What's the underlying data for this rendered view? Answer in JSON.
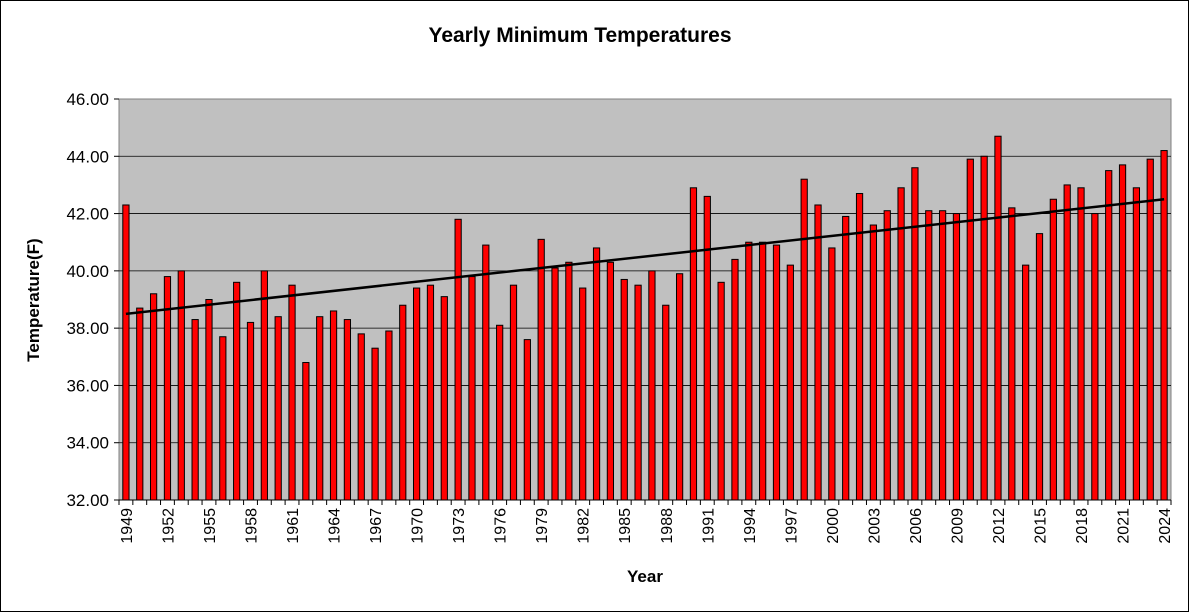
{
  "chart_data": {
    "type": "bar",
    "title": "Yearly Minimum Temperatures",
    "xlabel": "Year",
    "ylabel": "Temperature(F)",
    "ylim": [
      32,
      46
    ],
    "yticks": [
      "32.00",
      "34.00",
      "36.00",
      "38.00",
      "40.00",
      "42.00",
      "44.00",
      "46.00"
    ],
    "grid": true,
    "legend": "none",
    "colors": {
      "plot_background": "#c0c0c0",
      "bar_fill": "#ff0000",
      "bar_stroke": "#000000",
      "trendline": "#000000"
    },
    "x": [
      1949,
      1950,
      1951,
      1952,
      1953,
      1954,
      1955,
      1956,
      1957,
      1958,
      1959,
      1960,
      1961,
      1962,
      1963,
      1964,
      1965,
      1966,
      1967,
      1968,
      1969,
      1970,
      1971,
      1972,
      1973,
      1974,
      1975,
      1976,
      1977,
      1978,
      1979,
      1980,
      1981,
      1982,
      1983,
      1984,
      1985,
      1986,
      1987,
      1988,
      1989,
      1990,
      1991,
      1992,
      1993,
      1994,
      1995,
      1996,
      1997,
      1998,
      1999,
      2000,
      2001,
      2002,
      2003,
      2004,
      2005,
      2006,
      2007,
      2008,
      2009,
      2010,
      2011,
      2012,
      2013,
      2014,
      2015,
      2016,
      2017,
      2018,
      2019,
      2020,
      2021,
      2022,
      2023,
      2024
    ],
    "xtick_labels": [
      "1949",
      "1952",
      "1955",
      "1958",
      "1961",
      "1964",
      "1967",
      "1970",
      "1973",
      "1976",
      "1979",
      "1982",
      "1985",
      "1988",
      "1991",
      "1994",
      "1997",
      "2000",
      "2003",
      "2006",
      "2009",
      "2012",
      "2015",
      "2018",
      "2021",
      "2024"
    ],
    "values": [
      42.3,
      38.7,
      39.2,
      39.8,
      40.0,
      38.3,
      39.0,
      37.7,
      39.6,
      38.2,
      40.0,
      38.4,
      39.5,
      36.8,
      38.4,
      38.6,
      38.3,
      37.8,
      37.3,
      37.9,
      38.8,
      39.4,
      39.5,
      39.1,
      41.8,
      39.8,
      40.9,
      38.1,
      39.5,
      37.6,
      41.1,
      40.1,
      40.3,
      39.4,
      40.8,
      40.3,
      39.7,
      39.5,
      40.0,
      38.8,
      39.9,
      42.9,
      42.6,
      39.6,
      40.4,
      41.0,
      41.0,
      40.9,
      40.2,
      43.2,
      42.3,
      40.8,
      41.9,
      42.7,
      41.6,
      42.1,
      42.9,
      43.6,
      42.1,
      42.1,
      42.0,
      43.9,
      44.0,
      44.7,
      42.2,
      40.2,
      41.3,
      42.5,
      43.0,
      42.9,
      42.0,
      43.5,
      43.7,
      42.9,
      43.9,
      44.2
    ],
    "trendline": {
      "start": 38.5,
      "end": 42.5
    }
  }
}
